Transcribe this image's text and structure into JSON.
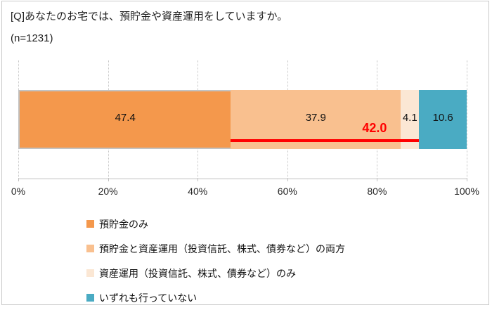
{
  "header": {
    "title": "[Q]あなたのお宅では、預貯金や資産運用をしていますか。",
    "sample_size": "(n=1231)"
  },
  "chart_data": {
    "type": "bar",
    "subtype": "horizontal_stacked_single_bar",
    "unit": "%",
    "segments": [
      {
        "label": "預貯金のみ",
        "value": 47.4,
        "color": "#F4984C"
      },
      {
        "label": "預貯金と資産運用（投資信託、株式、債券など）の両方",
        "value": 37.9,
        "color": "#F9C08F"
      },
      {
        "label": "資産運用（投資信託、株式、債券など）のみ",
        "value": 4.1,
        "color": "#FBE7D4"
      },
      {
        "label": "いずれも行っていない",
        "value": 10.6,
        "color": "#4AABC3"
      }
    ],
    "annotation": {
      "label": "42.0",
      "value": 42.0,
      "from": 47.4,
      "to": 89.4,
      "color": "#FF0000"
    },
    "x_axis": {
      "min": 0,
      "max": 100,
      "tick_labels": [
        "0%",
        "20%",
        "40%",
        "60%",
        "80%",
        "100%"
      ],
      "gridlines": "dotted"
    },
    "legend_position": "bottom"
  }
}
